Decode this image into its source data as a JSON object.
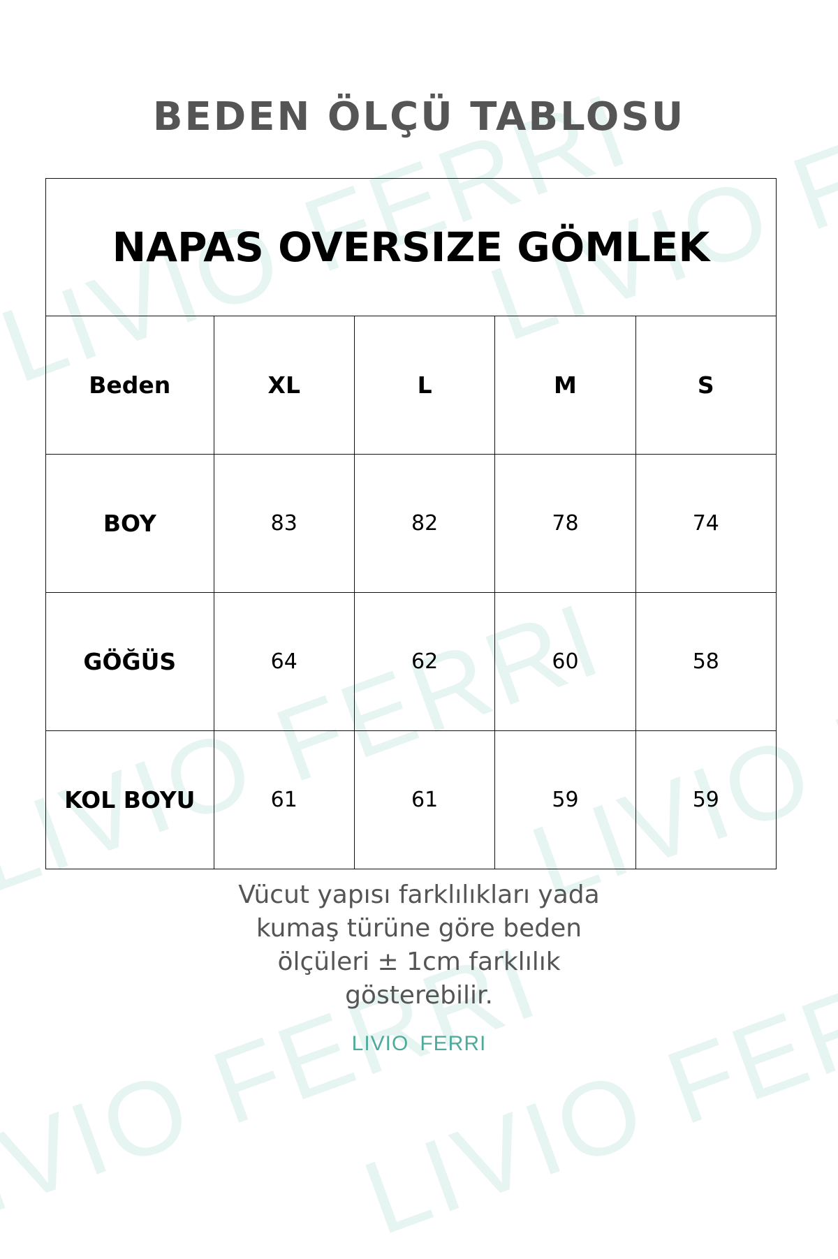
{
  "watermark": "LIVIO FERRI",
  "page_title": "BEDEN ÖLÇÜ TABLOSU",
  "table": {
    "product_title": "NAPAS OVERSIZE GÖMLEK",
    "header": [
      "Beden",
      "XL",
      "L",
      "M",
      "S"
    ],
    "rows": [
      {
        "label": "BOY",
        "values": [
          "83",
          "82",
          "78",
          "74"
        ]
      },
      {
        "label": "GÖĞÜS",
        "values": [
          "64",
          "62",
          "60",
          "58"
        ]
      },
      {
        "label": "KOL BOYU",
        "values": [
          "61",
          "61",
          "59",
          "59"
        ]
      }
    ]
  },
  "note": "Vücut yapısı farklılıkları yada kumaş türüne göre beden ölçüleri  ± 1cm farklılık gösterebilir.",
  "logo": {
    "word1": "LIVIO",
    "word2": "FERRI",
    "color": "#4eaa9a"
  }
}
